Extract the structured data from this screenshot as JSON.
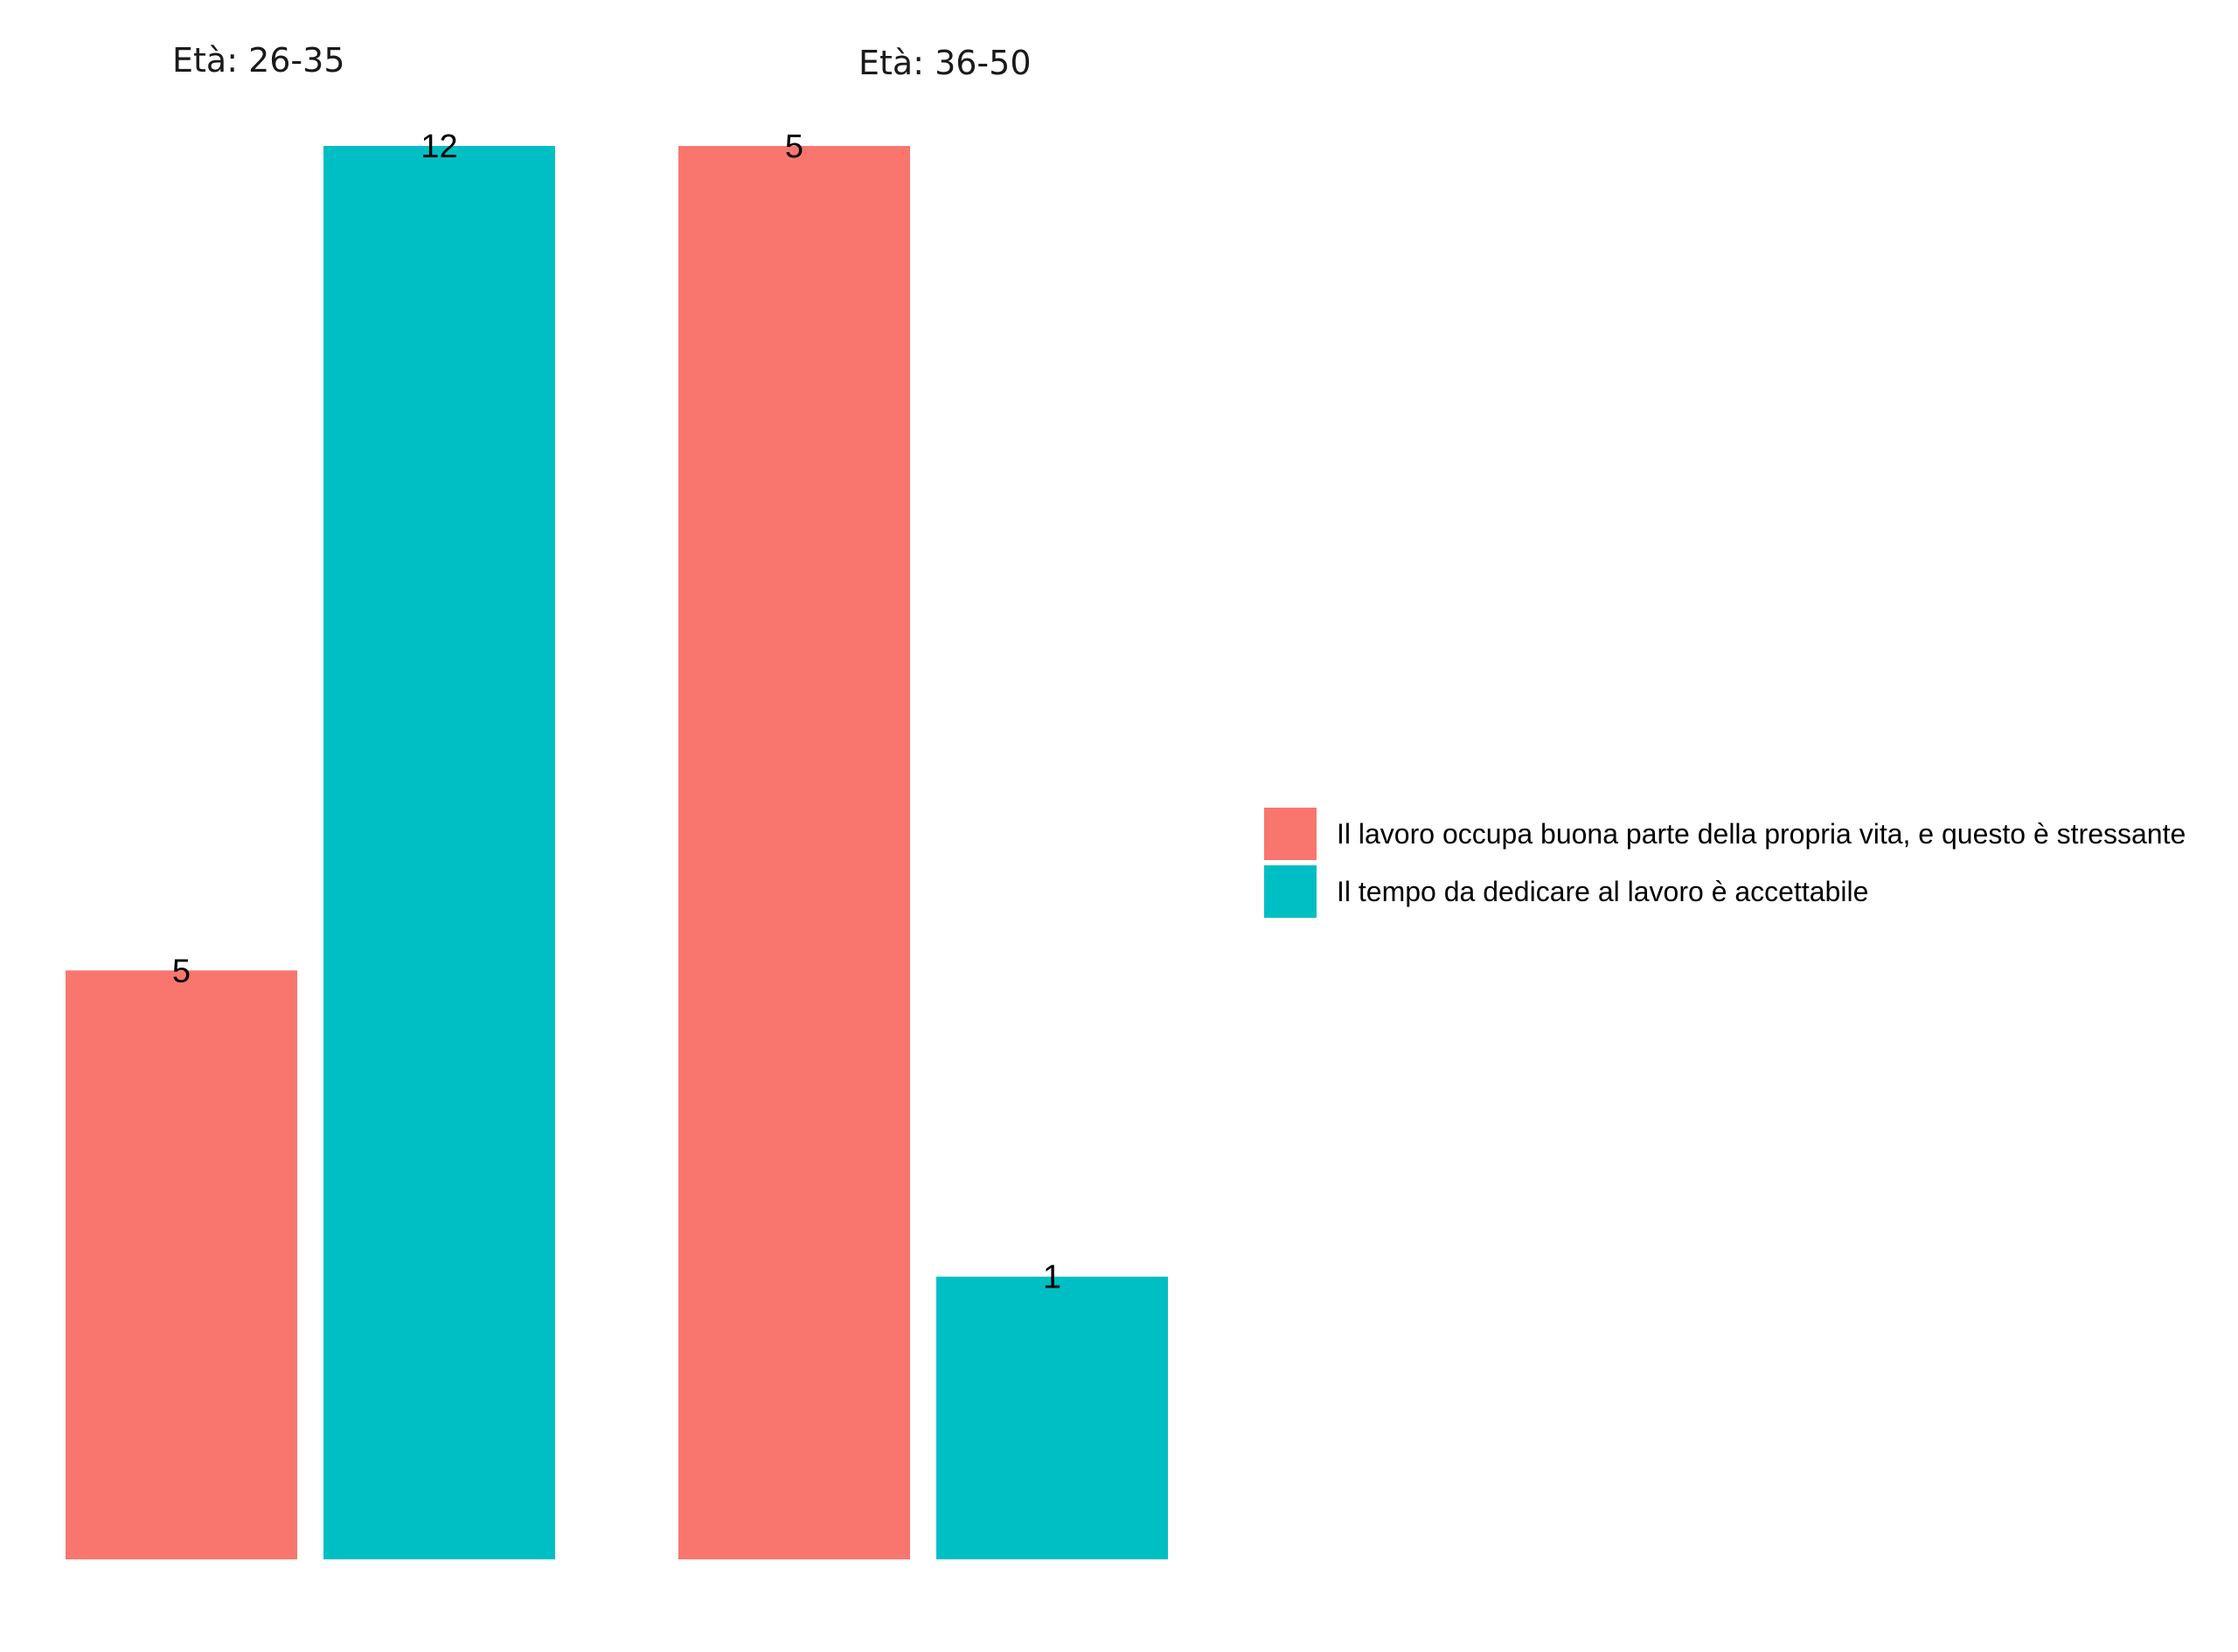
{
  "chart_data": {
    "type": "bar",
    "facets": [
      {
        "title": "Età: 26-35",
        "values": [
          5,
          12
        ],
        "labels": [
          "5",
          "12"
        ]
      },
      {
        "title": "Età: 36-50",
        "values": [
          5,
          1
        ],
        "labels": [
          "5",
          "1"
        ]
      }
    ],
    "series": [
      {
        "name": "Il lavoro occupa buona parte della propria vita, e questo è stressante",
        "color": "#F8766D"
      },
      {
        "name": "Il tempo da dedicare al lavoro è accettabile",
        "color": "#00BFC4"
      }
    ],
    "facet_scales": "free_y",
    "xlabel": "",
    "ylabel": "",
    "grid": false,
    "axes_shown": false,
    "legend_position": "right"
  }
}
